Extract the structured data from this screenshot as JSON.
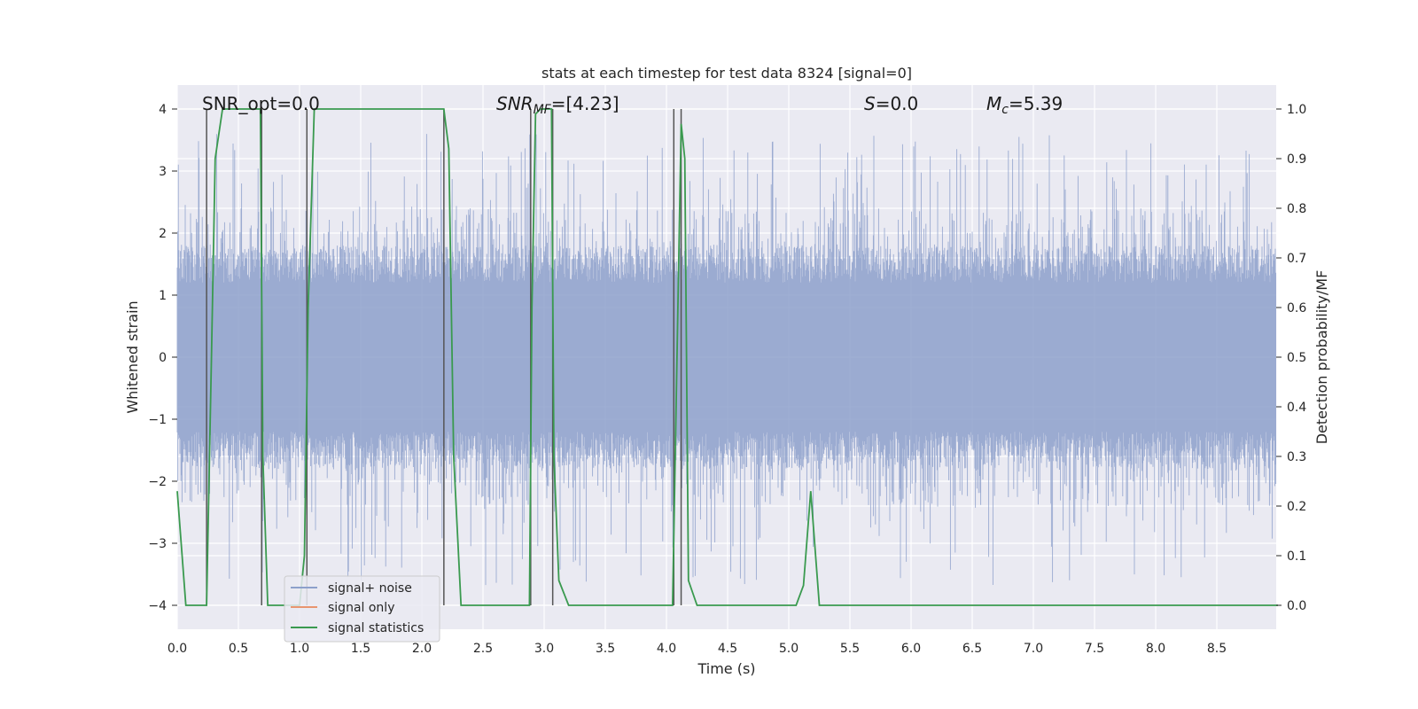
{
  "chart_data": {
    "type": "line",
    "title": "stats at each timestep for test data 8324 [signal=0]",
    "xlabel": "Time (s)",
    "ylabel": "Whitened strain",
    "y2label": "Detection probability/MF",
    "xlim": [
      0.0,
      9.0
    ],
    "ylim": [
      -4.4,
      4.4
    ],
    "y2lim": [
      -0.05,
      1.05
    ],
    "xticks": [
      "0.0",
      "0.5",
      "1.0",
      "1.5",
      "2.0",
      "2.5",
      "3.0",
      "3.5",
      "4.0",
      "4.5",
      "5.0",
      "5.5",
      "6.0",
      "6.5",
      "7.0",
      "7.5",
      "8.0",
      "8.5"
    ],
    "yticks": [
      "4",
      "3",
      "2",
      "1",
      "0",
      "−1",
      "−2",
      "−3",
      "−4"
    ],
    "y2ticks": [
      "1.0",
      "0.9",
      "0.8",
      "0.7",
      "0.6",
      "0.5",
      "0.4",
      "0.3",
      "0.2",
      "0.1",
      "0.0"
    ],
    "grid": true,
    "annotations": {
      "snr_opt": "SNR_opt=0.0",
      "snr_mf_sym": "SNR",
      "snr_mf_sub": "MF",
      "snr_mf_val": "=[4.23]",
      "s_sym": "S",
      "s_val": "=0.0",
      "mc_sym": "M",
      "mc_sub": "c",
      "mc_val": "=5.39"
    },
    "series": [
      {
        "name": "signal+ noise",
        "color": "#8da0cb",
        "style": "noise band, amplitude approx ±1.6 core with spikes to ±3.8"
      },
      {
        "name": "signal only",
        "color": "#e8956f",
        "values": []
      },
      {
        "name": "signal statistics",
        "color": "#3a9a4f",
        "x": [
          0.0,
          0.07,
          0.24,
          0.28,
          0.31,
          0.37,
          0.42,
          0.68,
          0.7,
          0.74,
          0.8,
          1.0,
          1.04,
          1.07,
          1.12,
          1.4,
          2.18,
          2.22,
          2.26,
          2.32,
          2.4,
          2.88,
          2.9,
          2.93,
          2.97,
          3.06,
          3.08,
          3.12,
          3.2,
          3.3,
          4.05,
          4.12,
          4.15,
          4.18,
          4.25,
          4.5,
          5.06,
          5.12,
          5.18,
          5.25,
          5.5,
          9.0
        ],
        "values": [
          0.23,
          0.0,
          0.0,
          0.5,
          0.9,
          1.0,
          1.0,
          1.0,
          0.3,
          0.0,
          0.0,
          0.0,
          0.1,
          0.6,
          1.0,
          1.0,
          1.0,
          0.92,
          0.3,
          0.0,
          0.0,
          0.0,
          0.6,
          0.99,
          1.0,
          1.0,
          0.3,
          0.05,
          0.0,
          0.0,
          0.0,
          0.97,
          0.9,
          0.05,
          0.0,
          0.0,
          0.0,
          0.04,
          0.23,
          0.0,
          0.0,
          0.0
        ]
      },
      {
        "name": "",
        "color": "#555555",
        "values": [
          0.24,
          0.69,
          1.06,
          2.18,
          2.89,
          3.07,
          4.06,
          4.12
        ]
      }
    ],
    "legend": {
      "placement": "lower-left",
      "entries": [
        "signal+ noise",
        "signal only",
        "signal statistics"
      ]
    }
  }
}
